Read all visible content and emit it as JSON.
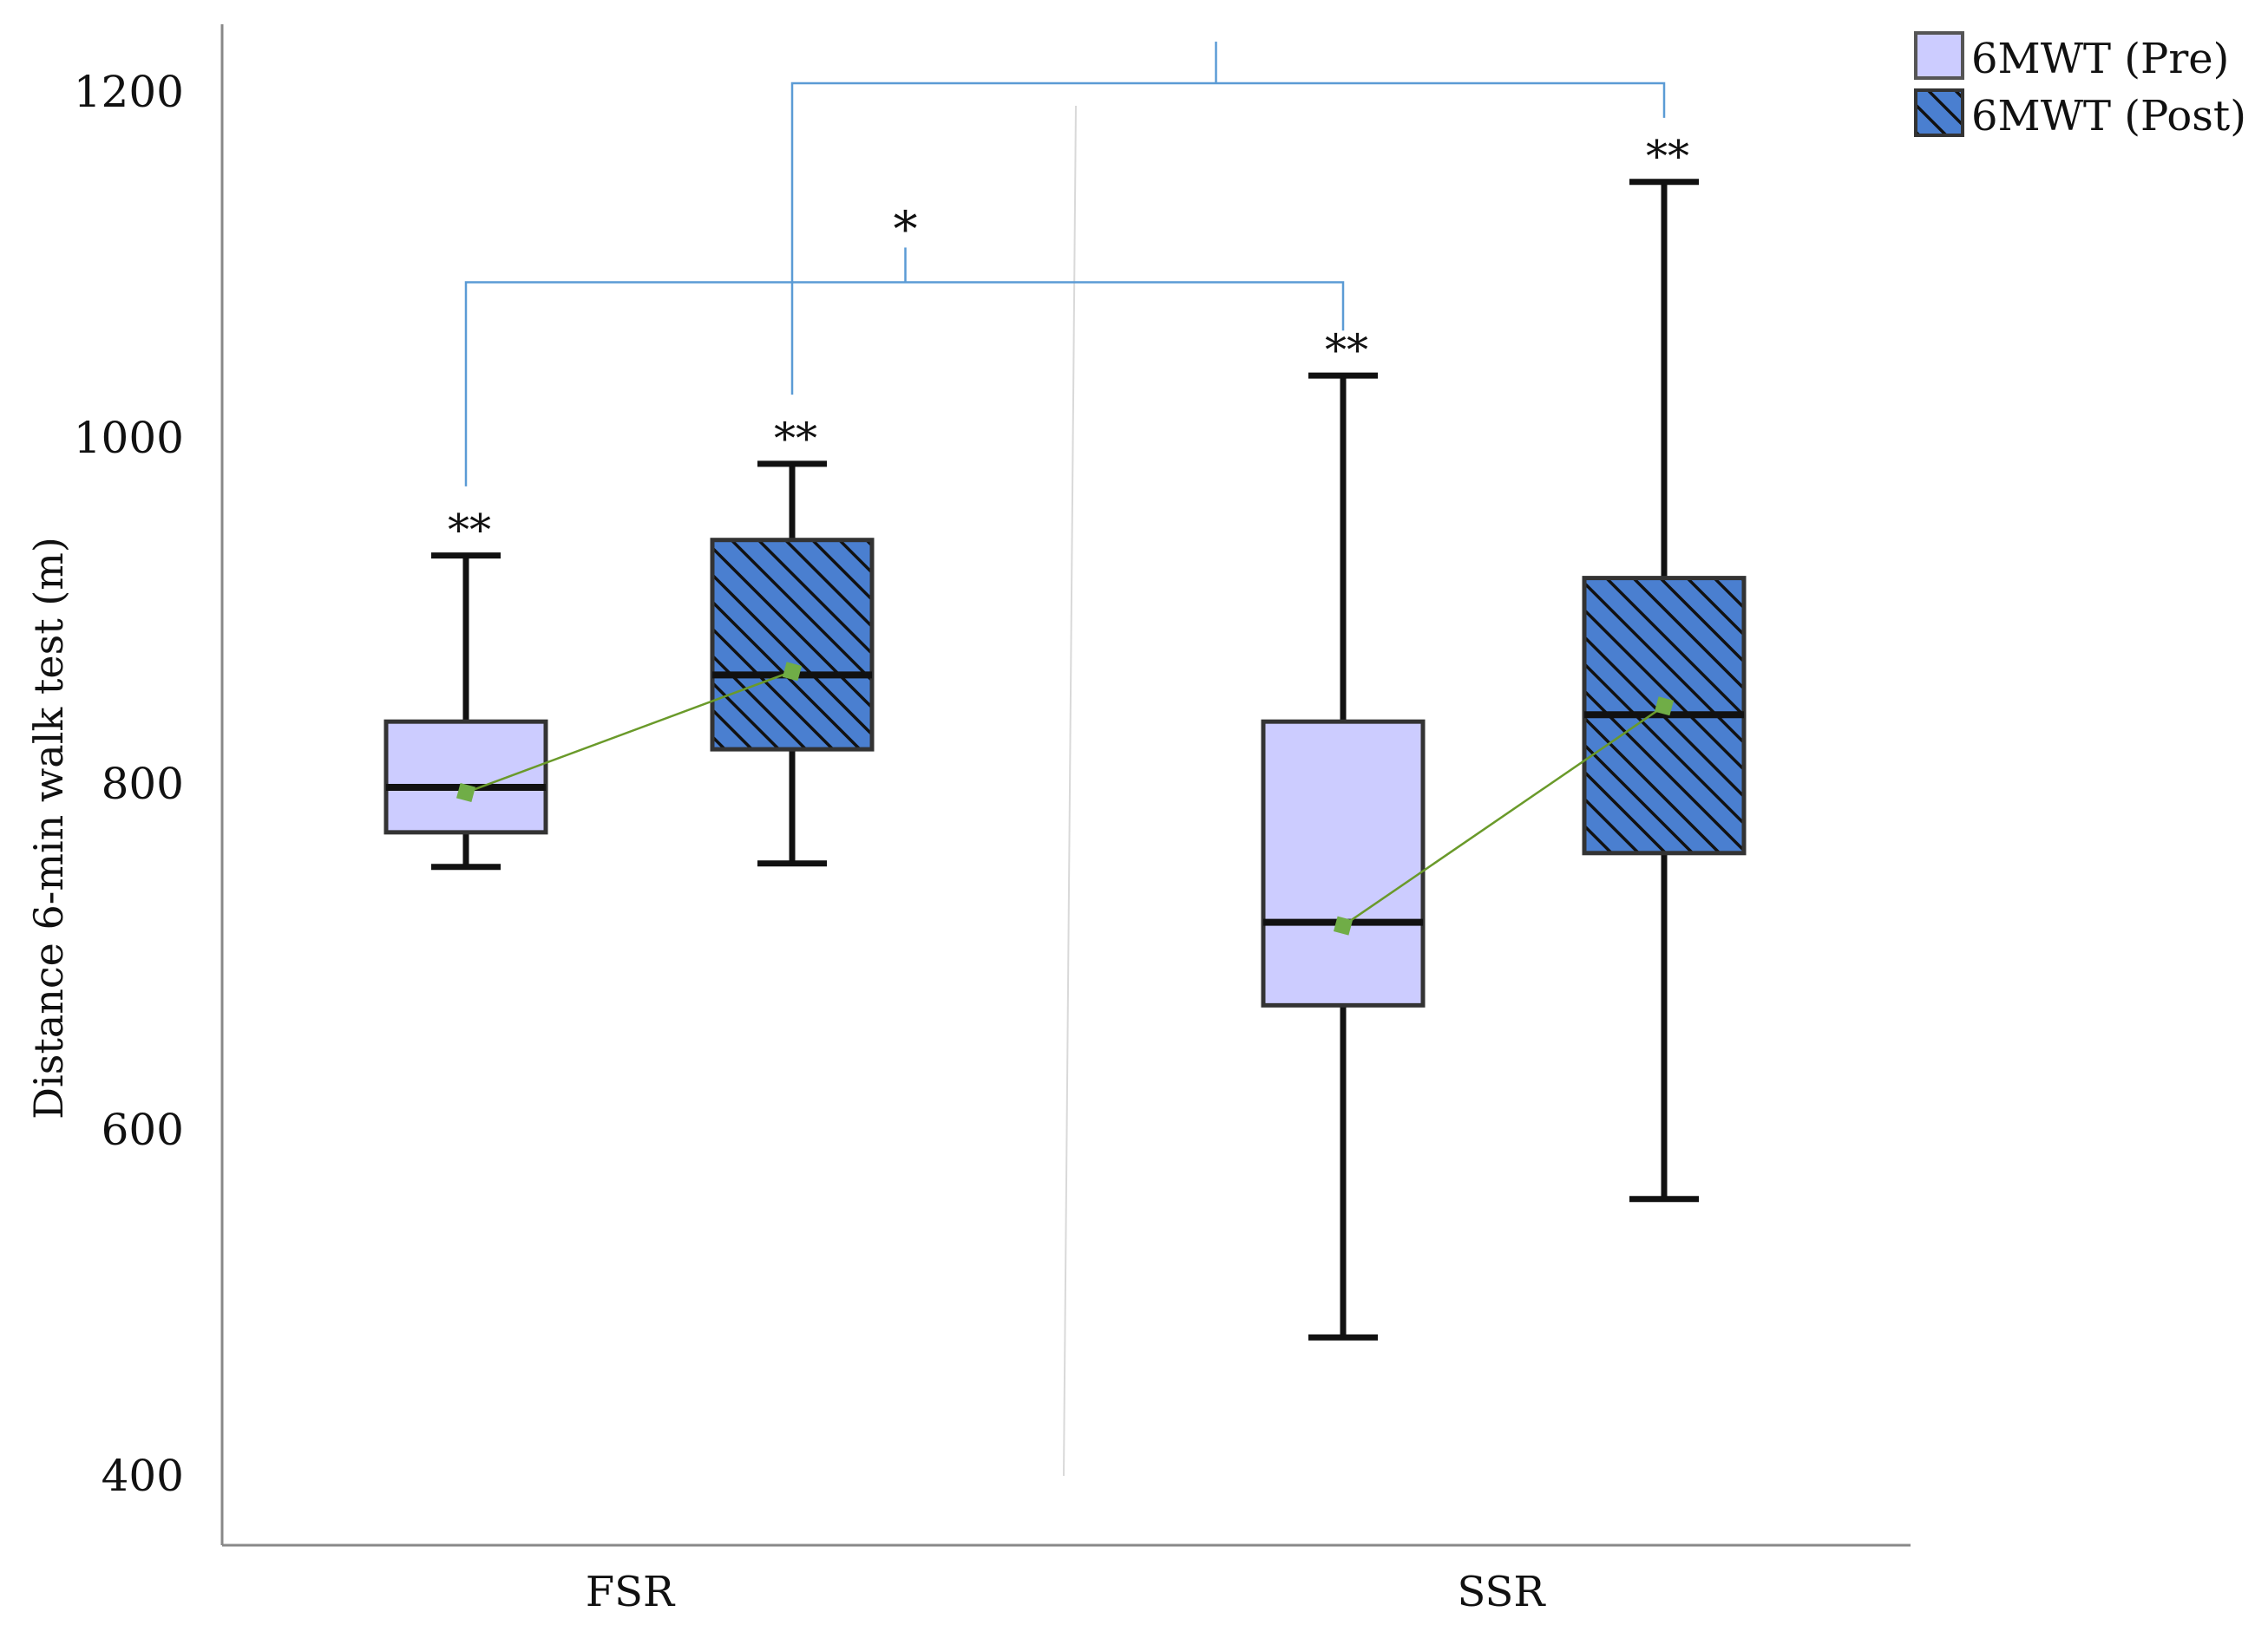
{
  "chart_data": {
    "type": "boxplot",
    "ylabel": "Distance 6-min walk test (m)",
    "ylim": [
      400,
      1240
    ],
    "yticks": [
      400,
      600,
      800,
      1000,
      1200
    ],
    "ytick_labels": [
      "400",
      "600",
      "800",
      "1000",
      "1200"
    ],
    "categories": [
      "FSR",
      "SSR"
    ],
    "legend": {
      "position": "top-right",
      "entries": [
        {
          "label": "6MWT (Pre)",
          "series": "pre"
        },
        {
          "label": "6MWT (Post)",
          "series": "post"
        }
      ]
    },
    "series": [
      {
        "name": "6MWT (Pre)",
        "key": "pre",
        "fill": "#ccccff",
        "hatched": false,
        "boxes": [
          {
            "category": "FSR",
            "whisker_low": 752,
            "q1": 772,
            "median": 798,
            "q3": 836,
            "whisker_high": 932,
            "mean": 795,
            "marker": "**"
          },
          {
            "category": "SSR",
            "whisker_low": 480,
            "q1": 672,
            "median": 720,
            "q3": 836,
            "whisker_high": 1036,
            "mean": 718,
            "marker": "**"
          }
        ]
      },
      {
        "name": "6MWT (Post)",
        "key": "post",
        "fill": "#4a7fd0",
        "hatched": true,
        "boxes": [
          {
            "category": "FSR",
            "whisker_low": 754,
            "q1": 820,
            "median": 863,
            "q3": 941,
            "whisker_high": 985,
            "mean": 865,
            "marker": "**"
          },
          {
            "category": "SSR",
            "whisker_low": 560,
            "q1": 760,
            "median": 840,
            "q3": 919,
            "whisker_high": 1148,
            "mean": 845,
            "marker": "**"
          }
        ]
      }
    ],
    "comparisons": [
      {
        "between": [
          "FSR pre",
          "SSR pre"
        ],
        "label": "*",
        "bracket_y": 1090
      },
      {
        "between": [
          "FSR post",
          "SSR post"
        ],
        "label": "",
        "bracket_y": 1205
      }
    ],
    "colors": {
      "bracket": "#5b9bd5",
      "mean_line": "#6a9a2a",
      "mean_marker": "#70ad47",
      "axis": "#888888",
      "divider": "#d9d9d9"
    }
  }
}
